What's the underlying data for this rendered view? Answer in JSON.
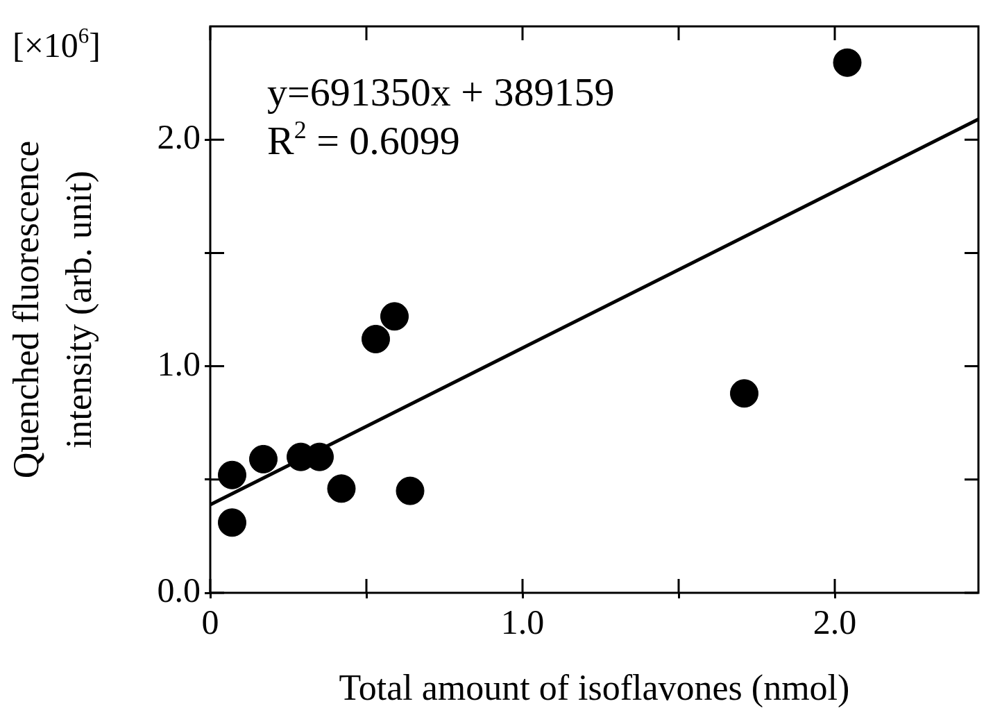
{
  "chart_data": {
    "type": "scatter",
    "xlabel": "Total amount of isoflavones (nmol)",
    "ylabel": "Quenched fluorescence intensity (arb. unit)",
    "annotations": [
      "[×10$^{6}$]",
      "y=691350x + 389159",
      "R$^{2}$ = 0.6099"
    ],
    "xlim": [
      0,
      2.46
    ],
    "ylim": [
      0,
      2.5
    ],
    "xticks": [
      {
        "value": 0,
        "label": "0"
      },
      {
        "value": 0.5,
        "label": null
      },
      {
        "value": 1,
        "label": "1.0"
      },
      {
        "value": 1.5,
        "label": null
      },
      {
        "value": 2,
        "label": "2.0"
      }
    ],
    "yticks": [
      {
        "value": 0,
        "label": "0.0"
      },
      {
        "value": 0.5,
        "label": null
      },
      {
        "value": 1,
        "label": "1.0"
      },
      {
        "value": 1.5,
        "label": null
      },
      {
        "value": 2,
        "label": "2.0"
      }
    ],
    "grid": false,
    "legend": false,
    "marker": "circle",
    "series": [
      {
        "type": "scatter",
        "color": "#000000",
        "x": [
          0.07,
          0.07,
          0.17,
          0.29,
          0.35,
          0.42,
          0.53,
          0.59,
          0.64,
          1.71,
          2.04
        ],
        "values": [
          0.52,
          0.31,
          0.59,
          0.6,
          0.6,
          0.46,
          1.12,
          1.22,
          0.45,
          0.88,
          2.34
        ]
      },
      {
        "type": "line",
        "color": "#000000",
        "line_style": "solid",
        "marker": "none",
        "x": [
          0,
          2.46
        ],
        "values": [
          0.389,
          2.09
        ]
      }
    ]
  }
}
